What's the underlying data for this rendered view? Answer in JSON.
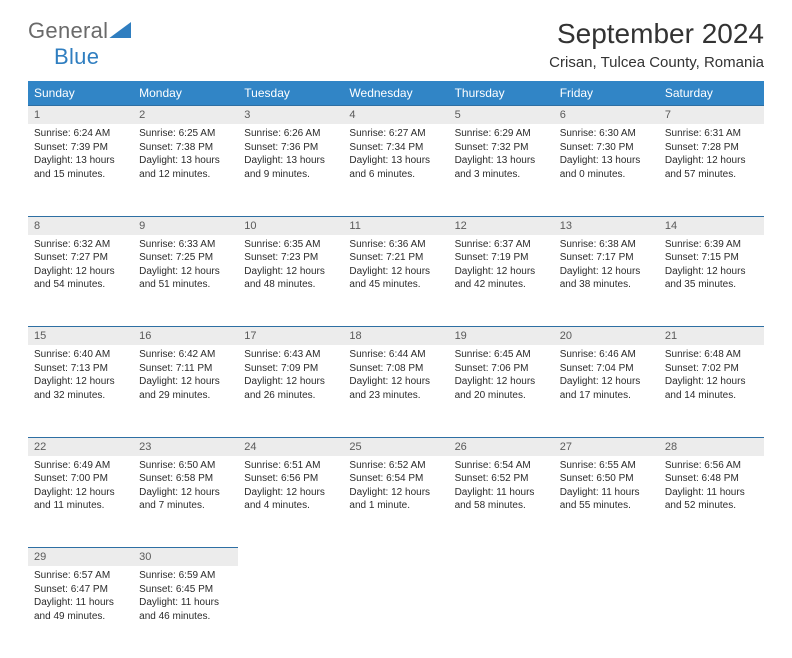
{
  "logo": {
    "general": "General",
    "blue": "Blue"
  },
  "title": "September 2024",
  "location": "Crisan, Tulcea County, Romania",
  "colors": {
    "header_bg": "#3185c6",
    "header_text": "#ffffff",
    "daynum_bg": "#ececec",
    "rule": "#2e6fa3"
  },
  "weekdays": [
    "Sunday",
    "Monday",
    "Tuesday",
    "Wednesday",
    "Thursday",
    "Friday",
    "Saturday"
  ],
  "weeks": [
    [
      {
        "n": "1",
        "sr": "6:24 AM",
        "ss": "7:39 PM",
        "dl": "13 hours and 15 minutes."
      },
      {
        "n": "2",
        "sr": "6:25 AM",
        "ss": "7:38 PM",
        "dl": "13 hours and 12 minutes."
      },
      {
        "n": "3",
        "sr": "6:26 AM",
        "ss": "7:36 PM",
        "dl": "13 hours and 9 minutes."
      },
      {
        "n": "4",
        "sr": "6:27 AM",
        "ss": "7:34 PM",
        "dl": "13 hours and 6 minutes."
      },
      {
        "n": "5",
        "sr": "6:29 AM",
        "ss": "7:32 PM",
        "dl": "13 hours and 3 minutes."
      },
      {
        "n": "6",
        "sr": "6:30 AM",
        "ss": "7:30 PM",
        "dl": "13 hours and 0 minutes."
      },
      {
        "n": "7",
        "sr": "6:31 AM",
        "ss": "7:28 PM",
        "dl": "12 hours and 57 minutes."
      }
    ],
    [
      {
        "n": "8",
        "sr": "6:32 AM",
        "ss": "7:27 PM",
        "dl": "12 hours and 54 minutes."
      },
      {
        "n": "9",
        "sr": "6:33 AM",
        "ss": "7:25 PM",
        "dl": "12 hours and 51 minutes."
      },
      {
        "n": "10",
        "sr": "6:35 AM",
        "ss": "7:23 PM",
        "dl": "12 hours and 48 minutes."
      },
      {
        "n": "11",
        "sr": "6:36 AM",
        "ss": "7:21 PM",
        "dl": "12 hours and 45 minutes."
      },
      {
        "n": "12",
        "sr": "6:37 AM",
        "ss": "7:19 PM",
        "dl": "12 hours and 42 minutes."
      },
      {
        "n": "13",
        "sr": "6:38 AM",
        "ss": "7:17 PM",
        "dl": "12 hours and 38 minutes."
      },
      {
        "n": "14",
        "sr": "6:39 AM",
        "ss": "7:15 PM",
        "dl": "12 hours and 35 minutes."
      }
    ],
    [
      {
        "n": "15",
        "sr": "6:40 AM",
        "ss": "7:13 PM",
        "dl": "12 hours and 32 minutes."
      },
      {
        "n": "16",
        "sr": "6:42 AM",
        "ss": "7:11 PM",
        "dl": "12 hours and 29 minutes."
      },
      {
        "n": "17",
        "sr": "6:43 AM",
        "ss": "7:09 PM",
        "dl": "12 hours and 26 minutes."
      },
      {
        "n": "18",
        "sr": "6:44 AM",
        "ss": "7:08 PM",
        "dl": "12 hours and 23 minutes."
      },
      {
        "n": "19",
        "sr": "6:45 AM",
        "ss": "7:06 PM",
        "dl": "12 hours and 20 minutes."
      },
      {
        "n": "20",
        "sr": "6:46 AM",
        "ss": "7:04 PM",
        "dl": "12 hours and 17 minutes."
      },
      {
        "n": "21",
        "sr": "6:48 AM",
        "ss": "7:02 PM",
        "dl": "12 hours and 14 minutes."
      }
    ],
    [
      {
        "n": "22",
        "sr": "6:49 AM",
        "ss": "7:00 PM",
        "dl": "12 hours and 11 minutes."
      },
      {
        "n": "23",
        "sr": "6:50 AM",
        "ss": "6:58 PM",
        "dl": "12 hours and 7 minutes."
      },
      {
        "n": "24",
        "sr": "6:51 AM",
        "ss": "6:56 PM",
        "dl": "12 hours and 4 minutes."
      },
      {
        "n": "25",
        "sr": "6:52 AM",
        "ss": "6:54 PM",
        "dl": "12 hours and 1 minute."
      },
      {
        "n": "26",
        "sr": "6:54 AM",
        "ss": "6:52 PM",
        "dl": "11 hours and 58 minutes."
      },
      {
        "n": "27",
        "sr": "6:55 AM",
        "ss": "6:50 PM",
        "dl": "11 hours and 55 minutes."
      },
      {
        "n": "28",
        "sr": "6:56 AM",
        "ss": "6:48 PM",
        "dl": "11 hours and 52 minutes."
      }
    ],
    [
      {
        "n": "29",
        "sr": "6:57 AM",
        "ss": "6:47 PM",
        "dl": "11 hours and 49 minutes."
      },
      {
        "n": "30",
        "sr": "6:59 AM",
        "ss": "6:45 PM",
        "dl": "11 hours and 46 minutes."
      },
      null,
      null,
      null,
      null,
      null
    ]
  ],
  "labels": {
    "sunrise": "Sunrise:",
    "sunset": "Sunset:",
    "daylight": "Daylight:"
  }
}
